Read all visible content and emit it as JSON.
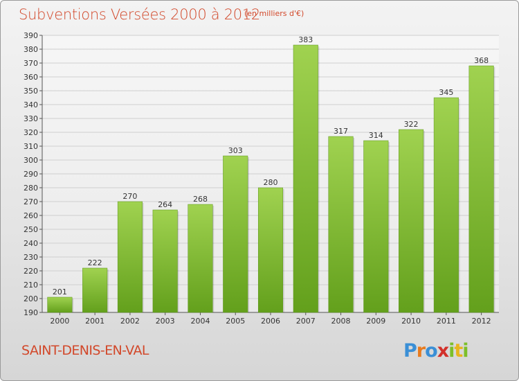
{
  "header": {
    "title": "Subventions Versées 2000 à 2012",
    "subtitle": "(en milliers d'€)"
  },
  "footer": {
    "city": "SAINT-DENIS-EN-VAL",
    "logo_text": "Proxiti"
  },
  "colors": {
    "accent": "#d2482a",
    "bar_light": "#a0d250",
    "bar_dark": "#63a01c",
    "grid": "#cfcfcf"
  },
  "chart_data": {
    "type": "bar",
    "title": "Subventions Versées 2000 à 2012",
    "subtitle": "(en milliers d'€)",
    "xlabel": "",
    "ylabel": "",
    "categories": [
      "2000",
      "2001",
      "2002",
      "2003",
      "2004",
      "2005",
      "2006",
      "2007",
      "2008",
      "2009",
      "2010",
      "2011",
      "2012"
    ],
    "values": [
      201,
      222,
      270,
      264,
      268,
      303,
      280,
      383,
      317,
      314,
      322,
      345,
      368
    ],
    "ylim": [
      190,
      390
    ],
    "ytick_step": 10,
    "grid": true,
    "legend": "none",
    "data_labels": true
  }
}
